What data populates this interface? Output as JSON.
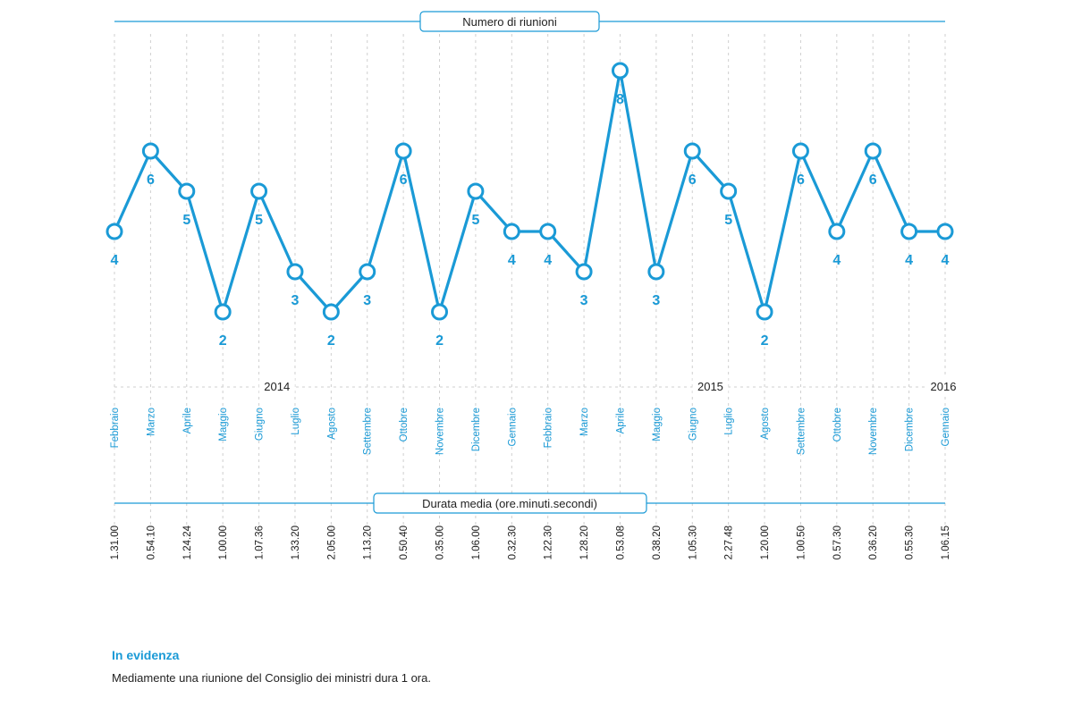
{
  "chart_data": {
    "type": "line",
    "title": "Numero di riunioni",
    "categories": [
      "Febbraio",
      "Marzo",
      "Aprile",
      "Maggio",
      "Giugno",
      "Luglio",
      "Agosto",
      "Settembre",
      "Ottobre",
      "Novembre",
      "Dicembre",
      "Gennaio",
      "Febbraio",
      "Marzo",
      "Aprile",
      "Maggio",
      "Giugno",
      "Luglio",
      "Agosto",
      "Settembre",
      "Ottobre",
      "Novembre",
      "Dicembre",
      "Gennaio"
    ],
    "values": [
      4,
      6,
      5,
      2,
      5,
      3,
      2,
      3,
      6,
      2,
      5,
      4,
      4,
      3,
      8,
      3,
      6,
      5,
      2,
      6,
      4,
      6,
      4,
      4
    ],
    "value_labels": [
      "4",
      "6",
      "5",
      "2",
      "5",
      "3",
      "2",
      "3",
      "6",
      "2",
      "5",
      "4",
      "4",
      "3",
      "8",
      "3",
      "6",
      "5",
      "2",
      "6",
      "4",
      "6",
      "4",
      "4"
    ],
    "years": [
      {
        "label": "2014",
        "between": [
          4,
          5
        ]
      },
      {
        "label": "2015",
        "between": [
          16,
          17
        ]
      },
      {
        "label": "2016",
        "between": [
          23,
          23
        ]
      }
    ],
    "duration_title": "Durata media (ore.minuti.secondi)",
    "durations": [
      "1.31.00",
      "0.54.10",
      "1.24.24",
      "1.00.00",
      "1.07.36",
      "1.33.20",
      "2.05.00",
      "1.13.20",
      "0.50.40",
      "0.35.00",
      "1.06.00",
      "0.32.30",
      "1.22.30",
      "1.28.20",
      "0.53.08",
      "0.38.20",
      "1.05.30",
      "2.27.48",
      "1.20.00",
      "1.00.50",
      "0.57.30",
      "0.36.20",
      "0.55.30",
      "1.06.15"
    ],
    "ylim": [
      2,
      8
    ],
    "grid": true,
    "colors": {
      "line": "#1a9ad6",
      "grid": "#cfcfcf",
      "axis_text": "#1a9ad6",
      "dark_text": "#222222"
    }
  },
  "note": {
    "title": "In evidenza",
    "text": "Mediamente una riunione del Consiglio dei ministri dura 1 ora."
  }
}
